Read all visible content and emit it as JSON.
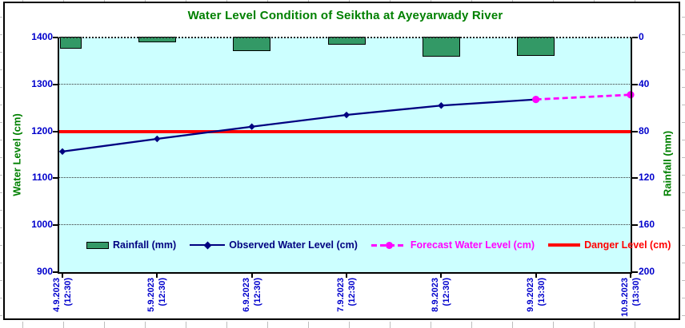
{
  "title": "Water Level Condition of Seiktha at Ayeyarwady River",
  "axes": {
    "left": {
      "title": "Water Level (cm)",
      "ticks": [
        1400,
        1300,
        1200,
        1100,
        1000,
        900
      ]
    },
    "right": {
      "title": "Rainfall (mm)",
      "ticks": [
        0,
        40,
        80,
        120,
        160,
        200
      ]
    },
    "x": {
      "labels": [
        [
          "4.9.2023",
          "(12:30)"
        ],
        [
          "5.9.2023",
          "(12:30)"
        ],
        [
          "6.9.2023",
          "(12:30)"
        ],
        [
          "7.9.2023",
          "(12:30)"
        ],
        [
          "8.9.2023",
          "(12:30)"
        ],
        [
          "9.9.2023",
          "(13:30)"
        ],
        [
          "10.9.2023",
          "(13:30)"
        ]
      ]
    }
  },
  "legend": {
    "items": [
      {
        "label": "Rainfall (mm)",
        "color": "#000080"
      },
      {
        "label": "Observed Water Level (cm)",
        "color": "#000080"
      },
      {
        "label": "Forecast Water Level (cm)",
        "color": "#FF00FF"
      },
      {
        "label": "Danger Level (cm)",
        "color": "#FF0000"
      }
    ]
  },
  "colors": {
    "plot_bg": "#CCFFFF",
    "bar_fill": "#339966",
    "observed_line": "#000080",
    "forecast_line": "#FF00FF",
    "danger_line": "#FF0000",
    "title_text": "#008000",
    "axis_text": "#0000CC"
  },
  "chart_data": {
    "type": "combo",
    "categories": [
      "4.9.2023 (12:30)",
      "5.9.2023 (12:30)",
      "6.9.2023 (12:30)",
      "7.9.2023 (12:30)",
      "8.9.2023 (12:30)",
      "9.9.2023 (13:30)",
      "10.9.2023 (13:30)"
    ],
    "series": [
      {
        "name": "Rainfall (mm)",
        "type": "bar",
        "y_axis": "right",
        "color": "#339966",
        "values": [
          10,
          5,
          12,
          7,
          17,
          16,
          0
        ]
      },
      {
        "name": "Observed Water Level (cm)",
        "type": "line",
        "style": "solid",
        "marker": "diamond",
        "y_axis": "left",
        "color": "#000080",
        "values": [
          1157,
          1184,
          1210,
          1235,
          1255,
          1268,
          null
        ]
      },
      {
        "name": "Forecast Water Level (cm)",
        "type": "line",
        "style": "dashed",
        "marker": "circle",
        "y_axis": "left",
        "color": "#FF00FF",
        "values": [
          null,
          null,
          null,
          null,
          null,
          1268,
          1278
        ]
      },
      {
        "name": "Danger Level (cm)",
        "type": "hline",
        "y_axis": "left",
        "color": "#FF0000",
        "value": 1200
      }
    ],
    "left_axis": {
      "label": "Water Level (cm)",
      "min": 900,
      "max": 1400,
      "tick_step": 100
    },
    "right_axis": {
      "label": "Rainfall (mm)",
      "min": 0,
      "max": 200,
      "tick_step": 40,
      "inverted": true,
      "bars_hang_from_top": true
    },
    "gridlines_left_values": [
      1300,
      1200,
      1100,
      1000
    ],
    "plot_bg": "#CCFFFF",
    "legend_position": "bottom-inside",
    "title": "Water Level Condition of Seiktha at Ayeyarwady River"
  }
}
